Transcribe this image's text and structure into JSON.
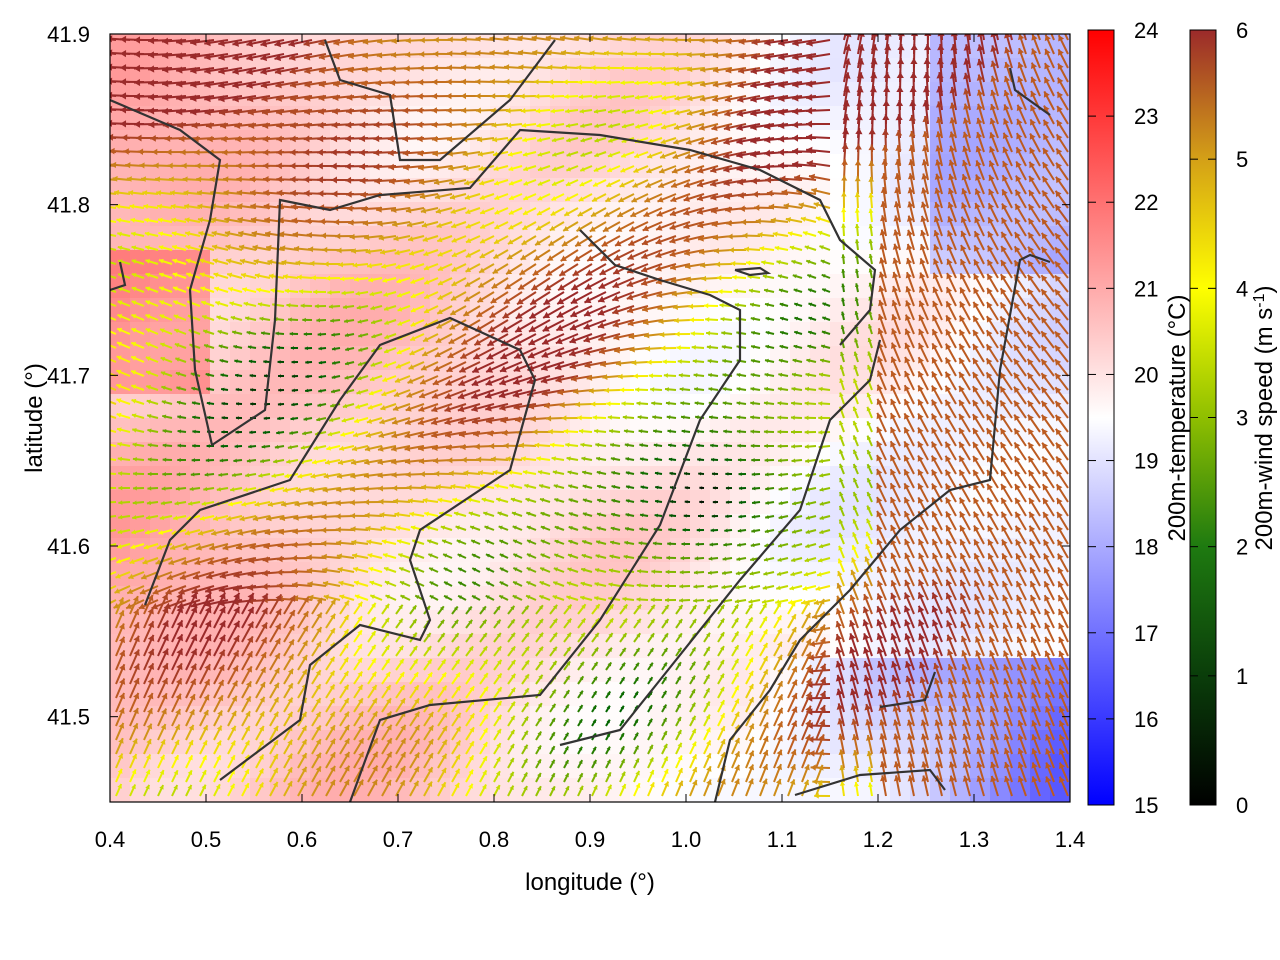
{
  "chart_data": {
    "type": "heatmap",
    "title": "",
    "xlabel": "longitude (°)",
    "ylabel": "latitude (°)",
    "xlim": [
      0.4,
      1.4
    ],
    "ylim": [
      41.45,
      41.9
    ],
    "x_ticks": [
      "0.4",
      "0.5",
      "0.6",
      "0.7",
      "0.8",
      "0.9",
      "1.0",
      "1.1",
      "1.2",
      "1.3",
      "1.4"
    ],
    "y_ticks": [
      "41.5",
      "41.6",
      "41.7",
      "41.8",
      "41.9"
    ],
    "grid": false,
    "layers": [
      {
        "kind": "heatmap",
        "field": "200m-temperature",
        "colorbar_label": "200m-temperature (°C)",
        "range": [
          15,
          24
        ],
        "colorbar_ticks": [
          "15",
          "16",
          "17",
          "18",
          "19",
          "20",
          "21",
          "22",
          "23",
          "24"
        ],
        "colormap": [
          "#0000ff",
          "#ffffff",
          "#ff0000"
        ]
      },
      {
        "kind": "vector",
        "field": "200m-wind speed",
        "colorbar_label": "200m-wind speed (m s-1)",
        "colorbar_label_main": "200m-wind speed (m s",
        "colorbar_label_sup": "-1",
        "colorbar_label_end": ")",
        "range": [
          0,
          6
        ],
        "colorbar_ticks": [
          "0",
          "1",
          "2",
          "3",
          "4",
          "5",
          "6"
        ],
        "colormap": [
          "#000000",
          "#006400",
          "#8fbf00",
          "#ffff00",
          "#d4a017",
          "#c06020",
          "#9b2a2a"
        ]
      },
      {
        "kind": "contour",
        "color": "#333333"
      }
    ]
  }
}
